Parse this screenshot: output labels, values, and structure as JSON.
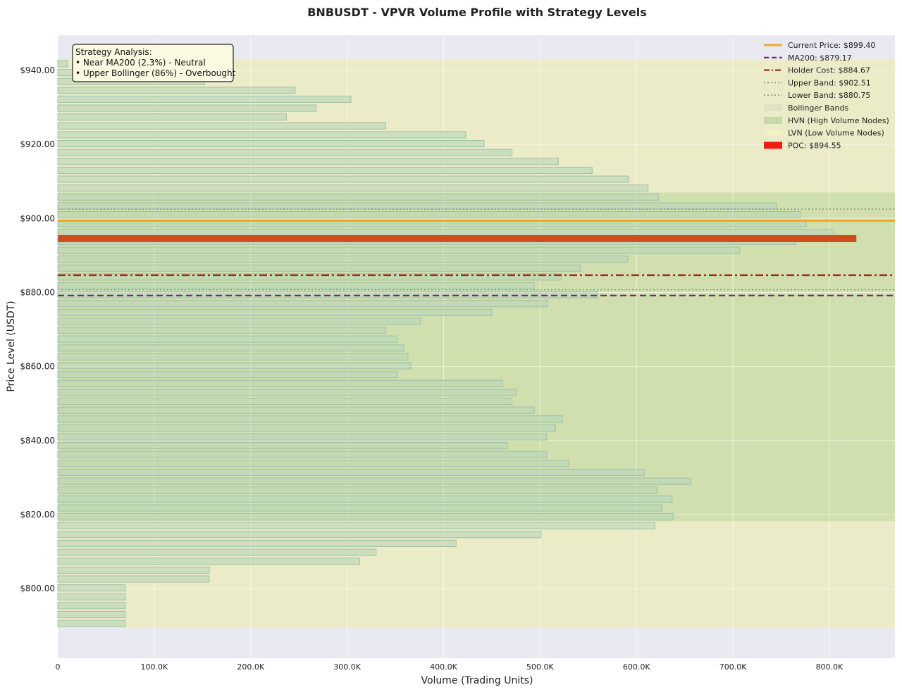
{
  "chart_data": {
    "type": "bar",
    "orientation": "horizontal",
    "title": "BNBUSDT - VPVR Volume Profile with Strategy Levels",
    "xlabel": "Volume (Trading Units)",
    "ylabel": "Price Level (USDT)",
    "xlim": [
      0,
      868000
    ],
    "ylim": [
      781.2,
      949.5
    ],
    "x_ticks": [
      {
        "value": 0,
        "label": "0"
      },
      {
        "value": 100000,
        "label": "100.0K"
      },
      {
        "value": 200000,
        "label": "200.0K"
      },
      {
        "value": 300000,
        "label": "300.0K"
      },
      {
        "value": 400000,
        "label": "400.0K"
      },
      {
        "value": 500000,
        "label": "500.0K"
      },
      {
        "value": 600000,
        "label": "600.0K"
      },
      {
        "value": 700000,
        "label": "700.0K"
      },
      {
        "value": 800000,
        "label": "800.0K"
      }
    ],
    "y_ticks": [
      {
        "value": 800,
        "label": "$800.00"
      },
      {
        "value": 820,
        "label": "$820.00"
      },
      {
        "value": 840,
        "label": "$840.00"
      },
      {
        "value": 860,
        "label": "$860.00"
      },
      {
        "value": 880,
        "label": "$880.00"
      },
      {
        "value": 900,
        "label": "$900.00"
      },
      {
        "value": 920,
        "label": "$920.00"
      },
      {
        "value": 940,
        "label": "$940.00"
      }
    ],
    "grid": true,
    "legend_position": "top-right",
    "bin_width": 2.4,
    "bins": [
      {
        "price": 790.6,
        "volume": 70000
      },
      {
        "price": 793.0,
        "volume": 70000
      },
      {
        "price": 795.4,
        "volume": 70000
      },
      {
        "price": 797.8,
        "volume": 70000
      },
      {
        "price": 800.2,
        "volume": 70000
      },
      {
        "price": 802.6,
        "volume": 157000
      },
      {
        "price": 805.0,
        "volume": 157000
      },
      {
        "price": 807.4,
        "volume": 313000
      },
      {
        "price": 809.8,
        "volume": 330000
      },
      {
        "price": 812.2,
        "volume": 413000
      },
      {
        "price": 814.6,
        "volume": 501000
      },
      {
        "price": 817.0,
        "volume": 619000
      },
      {
        "price": 819.4,
        "volume": 638000
      },
      {
        "price": 821.8,
        "volume": 626000
      },
      {
        "price": 824.2,
        "volume": 637000
      },
      {
        "price": 826.6,
        "volume": 621000
      },
      {
        "price": 829.0,
        "volume": 656000
      },
      {
        "price": 831.4,
        "volume": 608000
      },
      {
        "price": 833.8,
        "volume": 530000
      },
      {
        "price": 836.2,
        "volume": 507000
      },
      {
        "price": 838.6,
        "volume": 466000
      },
      {
        "price": 841.0,
        "volume": 507000
      },
      {
        "price": 843.4,
        "volume": 516000
      },
      {
        "price": 845.8,
        "volume": 523000
      },
      {
        "price": 848.2,
        "volume": 494000
      },
      {
        "price": 850.6,
        "volume": 471000
      },
      {
        "price": 853.0,
        "volume": 475000
      },
      {
        "price": 855.4,
        "volume": 461000
      },
      {
        "price": 857.8,
        "volume": 352000
      },
      {
        "price": 860.2,
        "volume": 366000
      },
      {
        "price": 862.6,
        "volume": 363000
      },
      {
        "price": 865.0,
        "volume": 359000
      },
      {
        "price": 867.4,
        "volume": 352000
      },
      {
        "price": 869.8,
        "volume": 340000
      },
      {
        "price": 872.2,
        "volume": 376000
      },
      {
        "price": 874.6,
        "volume": 450000
      },
      {
        "price": 877.0,
        "volume": 508000
      },
      {
        "price": 879.4,
        "volume": 560000
      },
      {
        "price": 881.8,
        "volume": 494000
      },
      {
        "price": 884.2,
        "volume": 522000
      },
      {
        "price": 886.6,
        "volume": 542000
      },
      {
        "price": 889.0,
        "volume": 591000
      },
      {
        "price": 891.4,
        "volume": 707000
      },
      {
        "price": 893.8,
        "volume": 765000
      },
      {
        "price": 896.2,
        "volume": 805000
      },
      {
        "price": 898.6,
        "volume": 776000
      },
      {
        "price": 901.0,
        "volume": 770000
      },
      {
        "price": 903.4,
        "volume": 745000
      },
      {
        "price": 905.8,
        "volume": 623000
      },
      {
        "price": 908.2,
        "volume": 612000
      },
      {
        "price": 910.6,
        "volume": 592000
      },
      {
        "price": 913.0,
        "volume": 554000
      },
      {
        "price": 915.4,
        "volume": 519000
      },
      {
        "price": 917.8,
        "volume": 471000
      },
      {
        "price": 920.2,
        "volume": 442000
      },
      {
        "price": 922.6,
        "volume": 423000
      },
      {
        "price": 925.0,
        "volume": 340000
      },
      {
        "price": 927.4,
        "volume": 237000
      },
      {
        "price": 929.8,
        "volume": 268000
      },
      {
        "price": 932.2,
        "volume": 304000
      },
      {
        "price": 934.6,
        "volume": 246000
      },
      {
        "price": 937.0,
        "volume": 152000
      },
      {
        "price": 939.4,
        "volume": 70000
      },
      {
        "price": 941.8,
        "volume": 10000
      }
    ],
    "lvn_zone": [
      789.4,
      943.0
    ],
    "hvn_zone": [
      818.2,
      907.0
    ],
    "bollinger_zone": [
      880.75,
      902.51
    ],
    "poc": {
      "price": 894.55,
      "volume": 828000
    },
    "levels": [
      {
        "name": "current_price",
        "value": 899.4,
        "color": "#f5a623",
        "style": "solid"
      },
      {
        "name": "ma200",
        "value": 879.17,
        "color": "#7b1f82",
        "style": "dashed"
      },
      {
        "name": "holder_cost",
        "value": 884.67,
        "color": "#a52a1a",
        "style": "dashdot"
      },
      {
        "name": "upper_band",
        "value": 902.51,
        "color": "#8c9c7c",
        "style": "dotted"
      },
      {
        "name": "lower_band",
        "value": 880.75,
        "color": "#8c9c7c",
        "style": "dotted"
      }
    ],
    "legend": [
      {
        "label": "Current Price: $899.40",
        "kind": "line",
        "color": "#f5a623",
        "style": "solid"
      },
      {
        "label": "MA200: $879.17",
        "kind": "line",
        "color": "#7b1f82",
        "style": "dashed"
      },
      {
        "label": "Holder Cost: $884.67",
        "kind": "line",
        "color": "#a52a1a",
        "style": "dashdot"
      },
      {
        "label": "Upper Band: $902.51",
        "kind": "line",
        "color": "#8c9c7c",
        "style": "dotted"
      },
      {
        "label": "Lower Band: $880.75",
        "kind": "line",
        "color": "#8c9c7c",
        "style": "dotted"
      },
      {
        "label": "Bollinger Bands",
        "kind": "patch",
        "color": "#dfe3c4"
      },
      {
        "label": "HVN (High Volume Nodes)",
        "kind": "patch",
        "color": "#c3d9a6"
      },
      {
        "label": "LVN (Low Volume Nodes)",
        "kind": "patch",
        "color": "#f3f0c6"
      },
      {
        "label": "POC: $894.55",
        "kind": "patch",
        "color": "#f01e12"
      }
    ],
    "annotation": {
      "lines": [
        "Strategy Analysis:",
        "• Near MA200 (2.3%) - Neutral",
        "• Upper Bollinger (86%) - Overbought"
      ]
    },
    "colors": {
      "plot_bg": "#e9e9f2",
      "lvn_fill": "#ecebc8",
      "hvn_fill": "#cfdfae",
      "bollinger_fill": "#d3dfaf",
      "bar_fill": "#b7d6b8",
      "bar_edge": "#9ec1a8",
      "poc": "#cc4e1a"
    }
  }
}
